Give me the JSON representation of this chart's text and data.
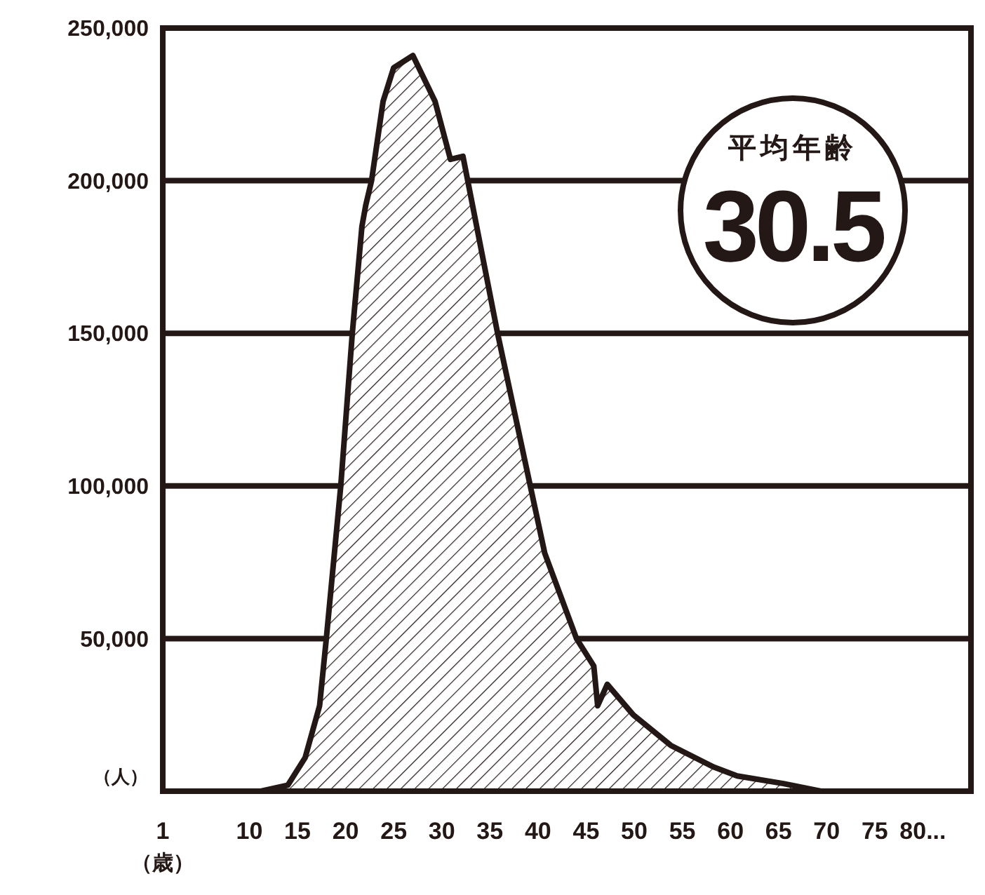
{
  "chart_data": {
    "type": "area",
    "xlabel": "（歳）",
    "ylabel": "（人）",
    "xlim": [
      1,
      85
    ],
    "ylim": [
      0,
      250000
    ],
    "xticks": [
      1,
      10,
      15,
      20,
      25,
      30,
      35,
      40,
      45,
      50,
      55,
      60,
      65,
      70,
      75,
      {
        "value": 80,
        "label": "80..."
      }
    ],
    "yticks": [
      {
        "value": 50000,
        "label": "50,000"
      },
      {
        "value": 100000,
        "label": "100,000"
      },
      {
        "value": 150000,
        "label": "150,000"
      },
      {
        "value": 200000,
        "label": "200,000"
      },
      {
        "value": 250000,
        "label": "250,000"
      }
    ],
    "grid": "y",
    "series": [
      {
        "color": "#231815",
        "x": [
          11.2,
          14,
          15.8,
          17.3,
          18,
          19.5,
          20.7,
          21.7,
          22.1,
          22.7,
          23.9,
          25,
          27,
          29.3,
          30.9,
          32.2,
          35.8,
          39.2,
          40.7,
          44,
          45.8,
          46.2,
          47.2,
          49.9,
          53.8,
          58.2,
          60.7,
          65.5,
          69.4
        ],
        "values": [
          0,
          2000,
          11000,
          28000,
          50000,
          100000,
          150000,
          185000,
          192000,
          200000,
          226000,
          237000,
          241000,
          226000,
          207000,
          208000,
          150000,
          100000,
          78000,
          50000,
          41000,
          28000,
          35000,
          25000,
          15000,
          8000,
          5000,
          2500,
          0
        ]
      }
    ],
    "annotations": [
      "平均年齢",
      "30.5"
    ]
  }
}
